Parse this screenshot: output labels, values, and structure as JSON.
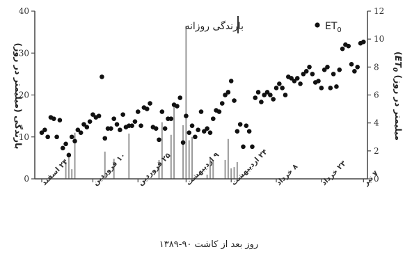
{
  "chart_data": {
    "type": "bar+scatter",
    "xlabel": "روز بعد از کاشت ۹۰-۱۳۸۹",
    "ylabel_left": "بارندگی (میلیمتر در روز)",
    "ylabel_right_prefix": "(",
    "ylabel_right_sym": "ET",
    "ylabel_right_sub": "0",
    "ylabel_right_rest": " (میلیمتر در روز",
    "y_left": {
      "min": 0,
      "max": 40,
      "ticks": [
        "0",
        "10",
        "20",
        "30",
        "40"
      ]
    },
    "y_right": {
      "min": 0,
      "max": 12,
      "ticks": [
        "0",
        "2",
        "4",
        "6",
        "8",
        "10",
        "12"
      ]
    },
    "x_range": [
      0,
      106
    ],
    "x_ticks": [
      {
        "x": 0,
        "label": "۲۴ اسفند"
      },
      {
        "x": 17,
        "label": "۱۰ فروردین"
      },
      {
        "x": 32,
        "label": "۲۵ فروردین"
      },
      {
        "x": 48,
        "label": "۹ اردیبهشت"
      },
      {
        "x": 63,
        "label": "۲۴ اردیبهشت"
      },
      {
        "x": 78,
        "label": "۸ خرداد"
      },
      {
        "x": 93,
        "label": "۲۳ خرداد"
      },
      {
        "x": 107,
        "label": "۷ تیر"
      }
    ],
    "legend": {
      "rain_label": "بارندگی روزانه",
      "et0_label": "ET",
      "et0_sub": "0",
      "position": "top-center"
    },
    "rainfall": [
      {
        "x": 8,
        "y": 4.0
      },
      {
        "x": 9,
        "y": 5.2
      },
      {
        "x": 10,
        "y": 2.3
      },
      {
        "x": 11,
        "y": 11.0
      },
      {
        "x": 21,
        "y": 6.5
      },
      {
        "x": 24,
        "y": 4.8
      },
      {
        "x": 29,
        "y": 10.8
      },
      {
        "x": 39,
        "y": 4.5
      },
      {
        "x": 40,
        "y": 13.5
      },
      {
        "x": 43,
        "y": 10.5
      },
      {
        "x": 44,
        "y": 17.5
      },
      {
        "x": 47,
        "y": 12.8
      },
      {
        "x": 48,
        "y": 36.5
      },
      {
        "x": 49,
        "y": 9.2
      },
      {
        "x": 50,
        "y": 10.0
      },
      {
        "x": 55,
        "y": 1.0
      },
      {
        "x": 56,
        "y": 5.0
      },
      {
        "x": 57,
        "y": 4.2
      },
      {
        "x": 61,
        "y": 4.5
      },
      {
        "x": 62,
        "y": 9.5
      },
      {
        "x": 63,
        "y": 2.5
      },
      {
        "x": 64,
        "y": 2.8
      },
      {
        "x": 65,
        "y": 4.0
      }
    ],
    "et0": [
      [
        0,
        3.3
      ],
      [
        1,
        3.5
      ],
      [
        2,
        3.0
      ],
      [
        3,
        4.4
      ],
      [
        4,
        4.3
      ],
      [
        5,
        3.0
      ],
      [
        6,
        4.2
      ],
      [
        7,
        2.2
      ],
      [
        8,
        2.5
      ],
      [
        9,
        1.7
      ],
      [
        10,
        3.0
      ],
      [
        11,
        2.7
      ],
      [
        12,
        3.5
      ],
      [
        13,
        3.3
      ],
      [
        14,
        3.9
      ],
      [
        15,
        3.7
      ],
      [
        16,
        4.1
      ],
      [
        17,
        4.6
      ],
      [
        18,
        4.4
      ],
      [
        19,
        4.5
      ],
      [
        20,
        7.3
      ],
      [
        21,
        2.9
      ],
      [
        22,
        3.6
      ],
      [
        23,
        3.6
      ],
      [
        24,
        4.3
      ],
      [
        25,
        3.9
      ],
      [
        26,
        3.5
      ],
      [
        27,
        4.6
      ],
      [
        28,
        3.7
      ],
      [
        29,
        3.8
      ],
      [
        30,
        3.8
      ],
      [
        31,
        4.1
      ],
      [
        32,
        4.8
      ],
      [
        33,
        3.8
      ],
      [
        34,
        5.1
      ],
      [
        35,
        5.0
      ],
      [
        36,
        5.4
      ],
      [
        37,
        3.7
      ],
      [
        38,
        3.6
      ],
      [
        39,
        2.8
      ],
      [
        40,
        4.8
      ],
      [
        41,
        3.6
      ],
      [
        42,
        4.3
      ],
      [
        43,
        4.3
      ],
      [
        44,
        5.3
      ],
      [
        45,
        5.2
      ],
      [
        46,
        5.8
      ],
      [
        47,
        2.6
      ],
      [
        48,
        4.5
      ],
      [
        49,
        3.3
      ],
      [
        50,
        3.8
      ],
      [
        51,
        3.0
      ],
      [
        52,
        3.5
      ],
      [
        53,
        4.8
      ],
      [
        54,
        3.4
      ],
      [
        55,
        3.6
      ],
      [
        56,
        3.3
      ],
      [
        57,
        4.3
      ],
      [
        58,
        4.9
      ],
      [
        59,
        4.8
      ],
      [
        60,
        5.4
      ],
      [
        61,
        6.0
      ],
      [
        62,
        6.2
      ],
      [
        63,
        7.0
      ],
      [
        64,
        5.6
      ],
      [
        65,
        3.4
      ],
      [
        66,
        3.9
      ],
      [
        67,
        2.3
      ],
      [
        68,
        3.8
      ],
      [
        69,
        3.4
      ],
      [
        70,
        2.3
      ],
      [
        71,
        5.8
      ],
      [
        72,
        6.2
      ],
      [
        73,
        5.5
      ],
      [
        74,
        6.0
      ],
      [
        75,
        6.2
      ],
      [
        76,
        6.0
      ],
      [
        77,
        5.7
      ],
      [
        78,
        6.5
      ],
      [
        79,
        6.8
      ],
      [
        80,
        6.5
      ],
      [
        81,
        6.0
      ],
      [
        82,
        7.3
      ],
      [
        83,
        7.2
      ],
      [
        84,
        7.0
      ],
      [
        85,
        7.2
      ],
      [
        86,
        6.8
      ],
      [
        87,
        7.5
      ],
      [
        88,
        7.7
      ],
      [
        89,
        8.0
      ],
      [
        90,
        7.5
      ],
      [
        91,
        6.9
      ],
      [
        92,
        7.0
      ],
      [
        93,
        6.5
      ],
      [
        94,
        7.8
      ],
      [
        95,
        8.0
      ],
      [
        96,
        6.5
      ],
      [
        97,
        7.5
      ],
      [
        98,
        6.6
      ],
      [
        99,
        7.8
      ],
      [
        100,
        9.3
      ],
      [
        101,
        9.6
      ],
      [
        102,
        9.5
      ],
      [
        103,
        8.2
      ],
      [
        104,
        7.7
      ],
      [
        105,
        8.0
      ],
      [
        106,
        9.7
      ],
      [
        107,
        9.8
      ],
      [
        108,
        7.0
      ],
      [
        109,
        8.2
      ]
    ]
  }
}
